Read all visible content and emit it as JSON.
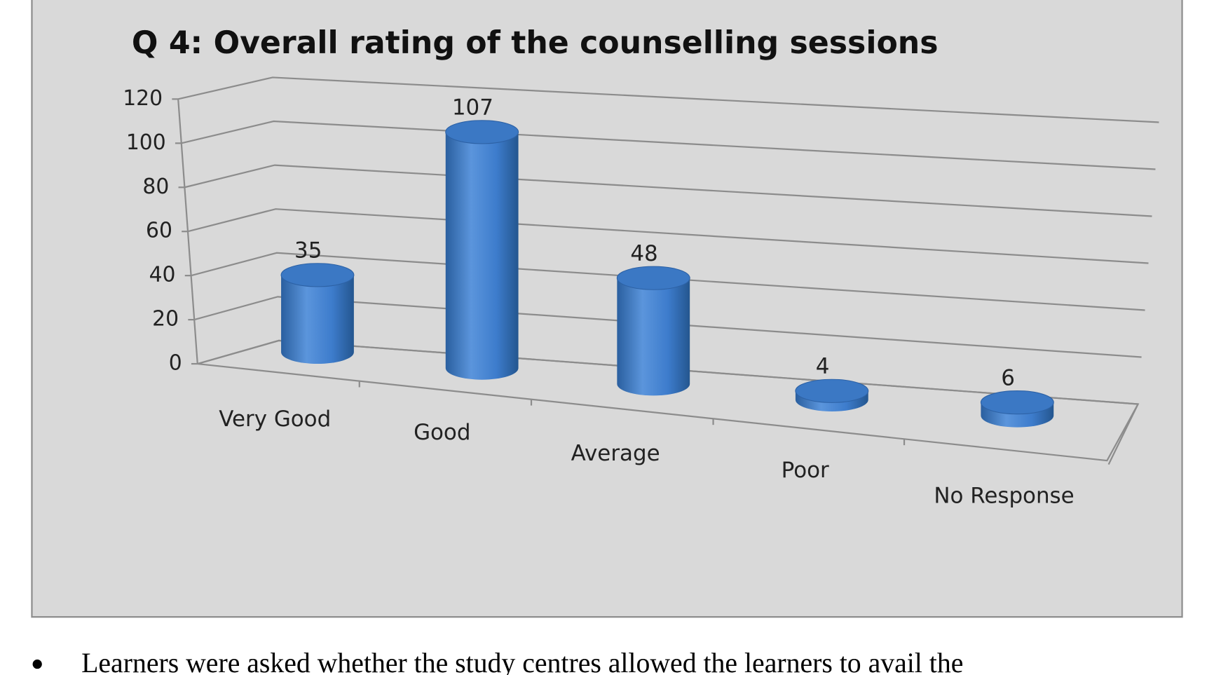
{
  "chart_data": {
    "type": "bar",
    "title": "Q 4: Overall rating of the counselling sessions",
    "categories": [
      "Very Good",
      "Good",
      "Average",
      "Poor",
      "No Response"
    ],
    "values": [
      35,
      107,
      48,
      4,
      6
    ],
    "color": "#3d7ccc",
    "ylim": [
      0,
      120
    ],
    "yticks": [
      0,
      20,
      40,
      60,
      80,
      100,
      120
    ],
    "grid": true
  },
  "body_text": "Learners were asked whether the study centres allowed the learners to avail the"
}
